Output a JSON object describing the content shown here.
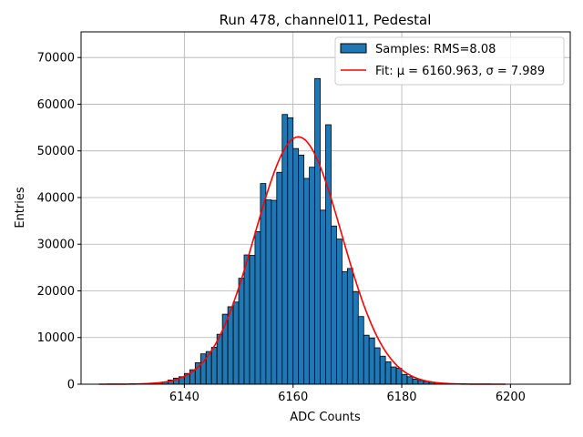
{
  "chart_data": {
    "type": "bar",
    "title": "Run 478, channel011, Pedestal",
    "xlabel": "ADC Counts",
    "ylabel": "Entries",
    "xlim": [
      6121,
      6211
    ],
    "ylim": [
      0,
      75500
    ],
    "xticks": [
      "6140",
      "6160",
      "6180",
      "6200"
    ],
    "yticks": [
      "0",
      "10000",
      "20000",
      "30000",
      "40000",
      "50000",
      "60000",
      "70000"
    ],
    "grid": true,
    "legend_position": "top-right",
    "bar_color": "#1f77b4",
    "fit_color": "#ff0000",
    "series": [
      {
        "name": "Samples: RMS=8.08",
        "type": "histogram",
        "bin_width": 1,
        "x": [
          6135,
          6136,
          6137,
          6138,
          6139,
          6140,
          6141,
          6142,
          6143,
          6144,
          6145,
          6146,
          6147,
          6148,
          6149,
          6150,
          6151,
          6152,
          6153,
          6154,
          6155,
          6156,
          6157,
          6158,
          6159,
          6160,
          6161,
          6162,
          6163,
          6164,
          6165,
          6166,
          6167,
          6168,
          6169,
          6170,
          6171,
          6172,
          6173,
          6174,
          6175,
          6176,
          6177,
          6178,
          6179,
          6180,
          6181,
          6182,
          6183,
          6184,
          6185,
          6186,
          6187,
          6188
        ],
        "values": [
          200,
          500,
          900,
          1300,
          1600,
          2300,
          3100,
          4600,
          6500,
          7000,
          7900,
          10700,
          15000,
          16600,
          17600,
          22700,
          27700,
          27600,
          32700,
          43000,
          39500,
          39400,
          45400,
          57800,
          57100,
          50500,
          49100,
          44100,
          46500,
          65500,
          37300,
          55600,
          33900,
          31100,
          24100,
          24800,
          19800,
          14500,
          10500,
          9900,
          7800,
          6000,
          4800,
          3700,
          3400,
          2100,
          1600,
          1100,
          800,
          600,
          400,
          300,
          200,
          100
        ]
      },
      {
        "name": "Fit: μ = 6160.963, σ = 7.989",
        "type": "line",
        "mu": 6160.963,
        "sigma": 7.989,
        "amplitude": 53000,
        "x_range": [
          6124.3,
          6199.1
        ]
      }
    ]
  }
}
